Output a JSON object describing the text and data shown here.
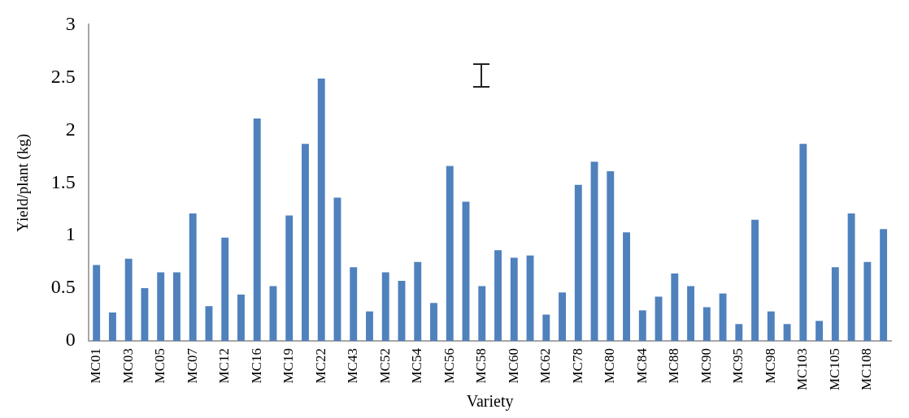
{
  "chart_data": {
    "type": "bar",
    "xlabel": "Variety",
    "ylabel": "Yield/plant (kg)",
    "categories": [
      "MC01",
      null,
      "MC03",
      null,
      "MC05",
      null,
      "MC07",
      null,
      "MC12",
      null,
      "MC16",
      null,
      "MC19",
      null,
      "MC22",
      null,
      "MC43",
      null,
      "MC52",
      null,
      "MC54",
      null,
      "MC56",
      null,
      "MC58",
      null,
      "MC60",
      null,
      "MC62",
      null,
      "MC78",
      null,
      "MC80",
      null,
      "MC84",
      null,
      "MC88",
      null,
      "MC90",
      null,
      "MC95",
      null,
      "MC98",
      null,
      "MC103",
      null,
      "MC105",
      null,
      "MC108",
      null
    ],
    "values": [
      0.72,
      0.27,
      0.78,
      0.5,
      0.65,
      0.65,
      1.21,
      0.33,
      0.98,
      0.44,
      2.11,
      0.52,
      1.19,
      1.87,
      2.49,
      1.36,
      0.7,
      0.28,
      0.65,
      0.57,
      0.75,
      0.36,
      1.66,
      1.32,
      0.52,
      0.86,
      0.79,
      0.81,
      0.25,
      0.46,
      1.48,
      1.7,
      1.61,
      1.03,
      0.29,
      0.42,
      0.64,
      0.52,
      0.32,
      0.45,
      0.16,
      1.15,
      0.28,
      0.16,
      1.87,
      0.19,
      0.7,
      1.21,
      0.75,
      1.06
    ],
    "color": "#4f81bd",
    "ylim": [
      0,
      3
    ],
    "yticks": [
      0,
      0.5,
      1,
      1.5,
      2,
      2.5,
      3
    ],
    "grid": false,
    "legend": false
  }
}
